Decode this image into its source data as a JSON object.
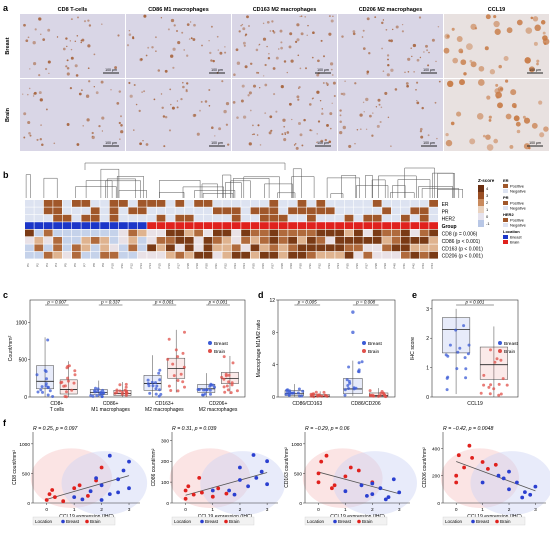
{
  "panels": {
    "a": {
      "label": "a",
      "columns": [
        "CD8 T-cells",
        "CD86 M1 macrophages",
        "CD163 M2 macrophages",
        "CD206 M2 macrophages",
        "CCL19"
      ],
      "rows": [
        "Breast",
        "Brain"
      ],
      "scalebar": "100 μm",
      "colors": {
        "tissue": "#d9d6e6",
        "stain": "#a5623a",
        "ccl19": "#c77a45"
      }
    },
    "b": {
      "label": "b",
      "row_labels": [
        "ER",
        "PR",
        "HER2",
        "Group",
        "CD8 (p = 0.006)",
        "CD86 (p < 0.001)",
        "CD163 (p < 0.001)",
        "CD206 (p < 0.001)"
      ],
      "zscore_title": "Z-score",
      "zscore_ticks": [
        "4",
        "3",
        "2",
        "1",
        "0",
        "-1"
      ],
      "legend": {
        "er_title": "ER",
        "pr_title": "PR",
        "her2_title": "HER2",
        "positive": "Positive",
        "negative": "Negative",
        "location_title": "Location",
        "breast": "Breast",
        "brain": "Brain"
      },
      "colors": {
        "positive": "#a0572a",
        "negative": "#dde3f1",
        "breast": "#1c36c8",
        "brain": "#e0211d",
        "heat_high": "#7a3a15",
        "heat_low": "#c5d2ea"
      }
    },
    "c": {
      "label": "c",
      "ylabel": "Count/mm²",
      "yticks": [
        "0",
        "500",
        "1000"
      ],
      "pvalues": [
        "p = 0.007",
        "p = 0.337",
        "p < 0.001",
        "p < 0.001"
      ],
      "legend": [
        "Breast",
        "Brain"
      ]
    },
    "d": {
      "label": "d",
      "ylabel": "Macrophage M1/M2 ratio",
      "yticks": [
        "0",
        "4",
        "8",
        "12"
      ],
      "pvalues": [
        "p = 0.005",
        "p = 0.008"
      ],
      "legend": [
        "Breast",
        "Brain"
      ]
    },
    "e": {
      "label": "e",
      "ylabel": "IHC score",
      "yticks": [
        "0",
        "1",
        "2",
        "3"
      ],
      "pvalue": "p < 0.001",
      "legend": [
        "Breast",
        "Brain"
      ]
    },
    "f": {
      "label": "f",
      "xlabel": "CCL19 expression (IHC)",
      "xticks": [
        "0",
        "1",
        "2",
        "3"
      ],
      "legend_title": "Location",
      "legend": [
        "Breast",
        "Brain"
      ]
    }
  },
  "chart_data": [
    {
      "type": "box",
      "panel": "c",
      "categories": [
        "CD8+ T cells",
        "CD86+ M1 macrophages",
        "CD163+ M2 macrophages",
        "CD206+ M2 macrophages"
      ],
      "series": [
        {
          "name": "Breast",
          "color": "#3b5bd6",
          "q1": [
            110,
            30,
            90,
            60
          ],
          "median": [
            210,
            60,
            180,
            110
          ],
          "q3": [
            420,
            100,
            290,
            170
          ],
          "whisker_low": [
            0,
            0,
            0,
            0
          ],
          "whisker_high": [
            800,
            220,
            560,
            320
          ]
        },
        {
          "name": "Brain",
          "color": "#e0504a",
          "q1": [
            40,
            20,
            250,
            180
          ],
          "median": [
            100,
            45,
            380,
            250
          ],
          "q3": [
            230,
            90,
            520,
            330
          ],
          "whisker_low": [
            0,
            0,
            60,
            40
          ],
          "whisker_high": [
            480,
            200,
            900,
            550
          ]
        }
      ],
      "ylim": [
        0,
        1300
      ]
    },
    {
      "type": "box",
      "panel": "d",
      "categories": [
        "CD86/CD163",
        "CD86/CD206"
      ],
      "series": [
        {
          "name": "Breast",
          "color": "#3b5bd6",
          "median": [
            0.4,
            1.0
          ],
          "q1": [
            0.2,
            0.4
          ],
          "q3": [
            0.8,
            2.3
          ],
          "whisker_high": [
            1.6,
            4.5
          ],
          "outliers": [
            [],
            [
              10.5,
              8.0
            ]
          ]
        },
        {
          "name": "Brain",
          "color": "#e0504a",
          "median": [
            0.1,
            0.2
          ],
          "q1": [
            0.05,
            0.1
          ],
          "q3": [
            0.3,
            0.5
          ],
          "whisker_high": [
            0.7,
            1.1
          ],
          "outliers": [
            [],
            []
          ]
        }
      ],
      "ylim": [
        0,
        12
      ]
    },
    {
      "type": "box",
      "panel": "e",
      "categories": [
        "CCL19"
      ],
      "series": [
        {
          "name": "Breast",
          "color": "#3b5bd6",
          "median": [
            2.3
          ],
          "q1": [
            1.5
          ],
          "q3": [
            2.7
          ],
          "whisker_low": [
            0.1
          ],
          "whisker_high": [
            3.0
          ]
        },
        {
          "name": "Brain",
          "color": "#e0504a",
          "median": [
            1.1
          ],
          "q1": [
            0.6
          ],
          "q3": [
            1.7
          ],
          "whisker_low": [
            0.0
          ],
          "whisker_high": [
            2.4
          ]
        }
      ],
      "ylim": [
        0,
        3.3
      ]
    },
    {
      "type": "scatter",
      "panel": "f1",
      "ylabel": "CD8 count/mm²",
      "annotation": "R = 0.25, p = 0.097",
      "yticks": [
        0,
        500,
        1000
      ],
      "ylim": [
        0,
        1200
      ],
      "xlim": [
        -0.5,
        3.4
      ],
      "points": {
        "Breast": [
          [
            1.0,
            100
          ],
          [
            1.6,
            200
          ],
          [
            2.0,
            300
          ],
          [
            2.3,
            150
          ],
          [
            2.6,
            400
          ],
          [
            3.0,
            250
          ],
          [
            2.8,
            550
          ],
          [
            2.3,
            800
          ],
          [
            1.3,
            60
          ],
          [
            2.0,
            50
          ],
          [
            3.0,
            700
          ],
          [
            2.6,
            180
          ],
          [
            1.8,
            420
          ]
        ],
        "Brain": [
          [
            0.0,
            50
          ],
          [
            0.1,
            150
          ],
          [
            0.3,
            100
          ],
          [
            1.0,
            250
          ],
          [
            1.2,
            300
          ],
          [
            0.6,
            30
          ],
          [
            1.5,
            120
          ],
          [
            2.0,
            600
          ],
          [
            1.8,
            380
          ],
          [
            0.2,
            220
          ]
        ]
      }
    },
    {
      "type": "scatter",
      "panel": "f2",
      "ylabel": "CD86 count/mm²",
      "annotation": "R = 0.31, p = 0.039",
      "yticks": [
        0,
        100,
        200,
        300
      ],
      "ylim": [
        0,
        340
      ],
      "xlim": [
        -0.5,
        3.4
      ],
      "points": {
        "Breast": [
          [
            1.0,
            60
          ],
          [
            2.0,
            110
          ],
          [
            2.3,
            80
          ],
          [
            2.8,
            150
          ],
          [
            3.0,
            200
          ],
          [
            2.6,
            120
          ],
          [
            1.6,
            60
          ],
          [
            2.5,
            230
          ],
          [
            1.8,
            40
          ],
          [
            3.0,
            90
          ],
          [
            2.0,
            170
          ]
        ],
        "Brain": [
          [
            0.0,
            20
          ],
          [
            0.0,
            60
          ],
          [
            0.3,
            40
          ],
          [
            1.0,
            30
          ],
          [
            0.6,
            50
          ],
          [
            0.1,
            80
          ],
          [
            1.2,
            70
          ],
          [
            0.5,
            120
          ],
          [
            1.5,
            45
          ]
        ]
      }
    },
    {
      "type": "scatter",
      "panel": "f3",
      "ylabel": "CD163 count/mm²",
      "annotation": "R = −0.29, p = 0.06",
      "yticks": [
        0,
        500,
        1000
      ],
      "ylim": [
        0,
        1200
      ],
      "xlim": [
        -0.5,
        3.4
      ],
      "points": {
        "Breast": [
          [
            1.0,
            200
          ],
          [
            1.6,
            300
          ],
          [
            2.0,
            150
          ],
          [
            2.3,
            250
          ],
          [
            2.6,
            100
          ],
          [
            3.0,
            180
          ],
          [
            2.8,
            400
          ],
          [
            1.8,
            120
          ],
          [
            2.5,
            60
          ],
          [
            2.0,
            330
          ]
        ],
        "Brain": [
          [
            0.0,
            500
          ],
          [
            0.1,
            700
          ],
          [
            0.6,
            300
          ],
          [
            1.0,
            450
          ],
          [
            1.2,
            600
          ],
          [
            0.3,
            800
          ],
          [
            0.0,
            350
          ],
          [
            1.5,
            550
          ],
          [
            0.5,
            250
          ],
          [
            2.0,
            350
          ]
        ]
      }
    },
    {
      "type": "scatter",
      "panel": "f4",
      "ylabel": "CD206 count/mm²",
      "annotation": "R = −0.42, p = 0.0048",
      "yticks": [
        0,
        200,
        400
      ],
      "ylim": [
        0,
        520
      ],
      "xlim": [
        -0.5,
        3.4
      ],
      "points": {
        "Breast": [
          [
            1.0,
            150
          ],
          [
            1.6,
            200
          ],
          [
            2.0,
            100
          ],
          [
            2.3,
            150
          ],
          [
            2.6,
            80
          ],
          [
            3.0,
            120
          ],
          [
            2.8,
            60
          ],
          [
            1.8,
            180
          ],
          [
            2.5,
            40
          ],
          [
            2.0,
            230
          ]
        ],
        "Brain": [
          [
            0.0,
            200
          ],
          [
            0.1,
            350
          ],
          [
            0.5,
            420
          ],
          [
            1.0,
            300
          ],
          [
            1.2,
            250
          ],
          [
            0.3,
            260
          ],
          [
            0.0,
            150
          ],
          [
            1.5,
            280
          ],
          [
            0.6,
            330
          ]
        ]
      }
    }
  ]
}
